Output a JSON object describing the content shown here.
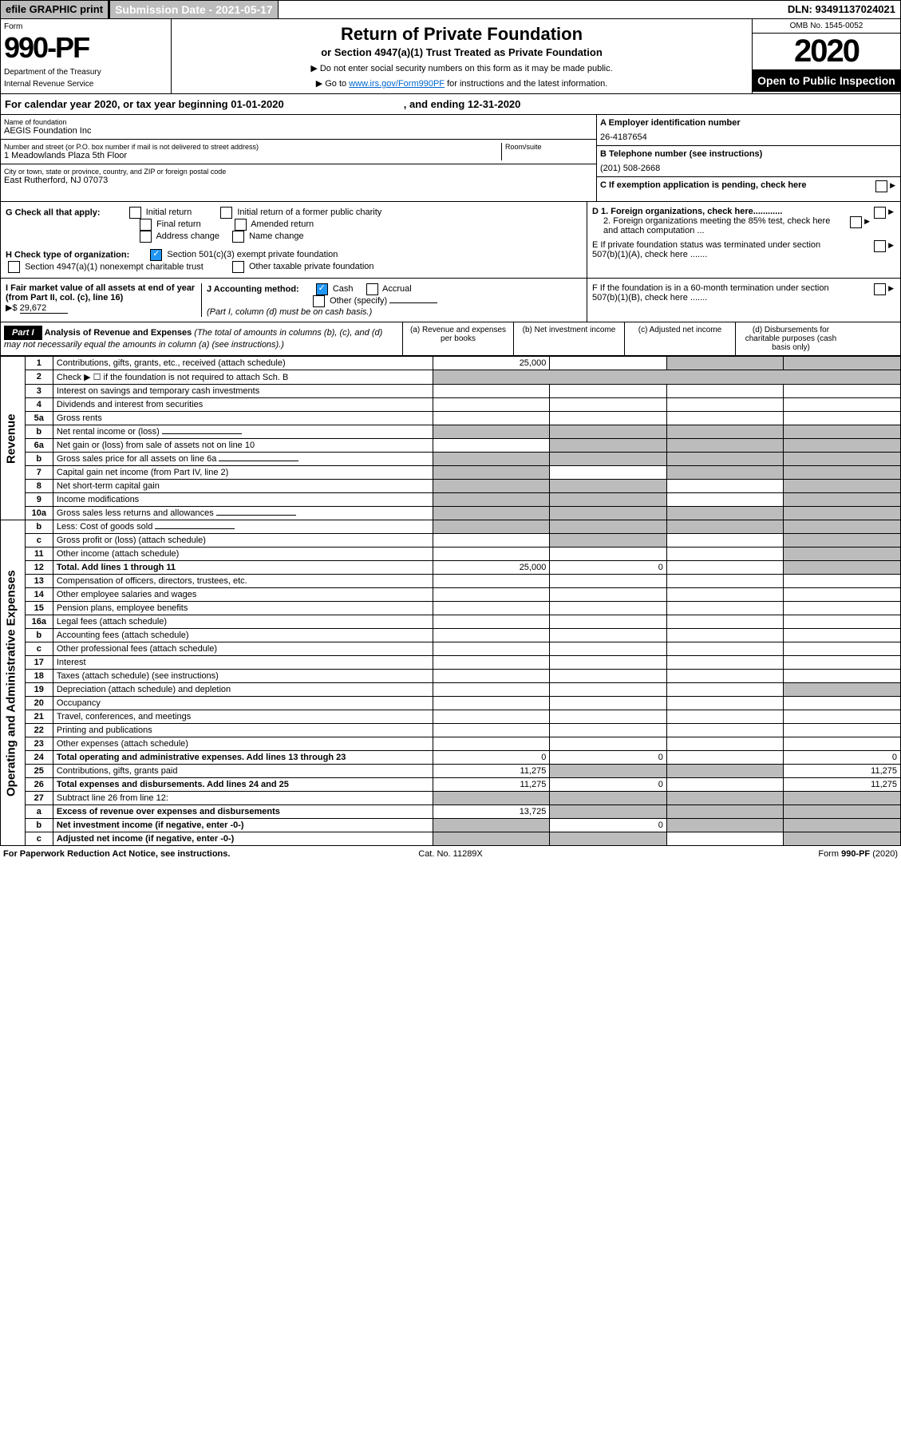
{
  "top": {
    "efile": "efile GRAPHIC print",
    "subdate_label": "Submission Date - ",
    "subdate": "2021-05-17",
    "dln_label": "DLN: ",
    "dln": "93491137024021"
  },
  "header": {
    "form_label": "Form",
    "form_num": "990-PF",
    "dept": "Department of the Treasury",
    "irs": "Internal Revenue Service",
    "title": "Return of Private Foundation",
    "subtitle": "or Section 4947(a)(1) Trust Treated as Private Foundation",
    "inst1": "▶ Do not enter social security numbers on this form as it may be made public.",
    "inst2_pre": "▶ Go to ",
    "inst2_link": "www.irs.gov/Form990PF",
    "inst2_post": " for instructions and the latest information.",
    "omb": "OMB No. 1545-0052",
    "year": "2020",
    "open": "Open to Public Inspection"
  },
  "calyear": {
    "text": "For calendar year 2020, or tax year beginning 01-01-2020",
    "ending": ", and ending 12-31-2020"
  },
  "info": {
    "name_label": "Name of foundation",
    "name": "AEGIS Foundation Inc",
    "addr_label": "Number and street (or P.O. box number if mail is not delivered to street address)",
    "room_label": "Room/suite",
    "addr": "1 Meadowlands Plaza 5th Floor",
    "city_label": "City or town, state or province, country, and ZIP or foreign postal code",
    "city": "East Rutherford, NJ  07073",
    "a_label": "A Employer identification number",
    "a_val": "26-4187654",
    "b_label": "B Telephone number (see instructions)",
    "b_val": "(201) 508-2668",
    "c_label": "C If exemption application is pending, check here"
  },
  "g": {
    "label": "G Check all that apply:",
    "initial": "Initial return",
    "initial_former": "Initial return of a former public charity",
    "final": "Final return",
    "amended": "Amended return",
    "addr_change": "Address change",
    "name_change": "Name change"
  },
  "h": {
    "label": "H Check type of organization:",
    "s501": "Section 501(c)(3) exempt private foundation",
    "s4947": "Section 4947(a)(1) nonexempt charitable trust",
    "other": "Other taxable private foundation"
  },
  "i": {
    "label": "I Fair market value of all assets at end of year (from Part II, col. (c), line 16)",
    "val": "29,672",
    "prefix": "▶$ "
  },
  "j": {
    "label": "J Accounting method:",
    "cash": "Cash",
    "accrual": "Accrual",
    "other": "Other (specify)",
    "note": "(Part I, column (d) must be on cash basis.)"
  },
  "d": {
    "d1": "D 1. Foreign organizations, check here............",
    "d2": "2. Foreign organizations meeting the 85% test, check here and attach computation ..."
  },
  "e": {
    "label": "E  If private foundation status was terminated under section 507(b)(1)(A), check here ......."
  },
  "f": {
    "label": "F  If the foundation is in a 60-month termination under section 507(b)(1)(B), check here ......."
  },
  "part1": {
    "hdr": "Part I",
    "title": "Analysis of Revenue and Expenses",
    "note": "(The total of amounts in columns (b), (c), and (d) may not necessarily equal the amounts in column (a) (see instructions).)",
    "col_a": "(a)   Revenue and expenses per books",
    "col_b": "(b)   Net investment income",
    "col_c": "(c)   Adjusted net income",
    "col_d": "(d)  Disbursements for charitable purposes (cash basis only)"
  },
  "side": {
    "revenue": "Revenue",
    "expenses": "Operating and Administrative Expenses"
  },
  "rows": [
    {
      "n": "1",
      "d": "Contributions, gifts, grants, etc., received (attach schedule)",
      "a": "25,000",
      "sc": true,
      "sd": true
    },
    {
      "n": "2",
      "d": "Check ▶ ☐ if the foundation is not required to attach Sch. B",
      "span": true
    },
    {
      "n": "3",
      "d": "Interest on savings and temporary cash investments"
    },
    {
      "n": "4",
      "d": "Dividends and interest from securities",
      "dots": true
    },
    {
      "n": "5a",
      "d": "Gross rents",
      "dots": true
    },
    {
      "n": "b",
      "d": "Net rental income or (loss)",
      "half": true,
      "sa": true,
      "sb": true,
      "sc": true,
      "sd": true
    },
    {
      "n": "6a",
      "d": "Net gain or (loss) from sale of assets not on line 10",
      "sb": true,
      "sc": true,
      "sd": true
    },
    {
      "n": "b",
      "d": "Gross sales price for all assets on line 6a",
      "half": true,
      "sa": true,
      "sb": true,
      "sc": true,
      "sd": true
    },
    {
      "n": "7",
      "d": "Capital gain net income (from Part IV, line 2)",
      "dots": true,
      "sa": true,
      "sc": true,
      "sd": true
    },
    {
      "n": "8",
      "d": "Net short-term capital gain",
      "dots": true,
      "sa": true,
      "sb": true,
      "sd": true
    },
    {
      "n": "9",
      "d": "Income modifications",
      "dots": true,
      "sa": true,
      "sb": true,
      "sd": true
    },
    {
      "n": "10a",
      "d": "Gross sales less returns and allowances",
      "half": true,
      "sa": true,
      "sb": true,
      "sc": true,
      "sd": true
    },
    {
      "n": "b",
      "d": "Less: Cost of goods sold",
      "dots": true,
      "half": true,
      "sa": true,
      "sb": true,
      "sc": true,
      "sd": true
    },
    {
      "n": "c",
      "d": "Gross profit or (loss) (attach schedule)",
      "dots": true,
      "sb": true,
      "sd": true
    },
    {
      "n": "11",
      "d": "Other income (attach schedule)",
      "dots": true,
      "sd": true
    },
    {
      "n": "12",
      "d": "Total. Add lines 1 through 11",
      "dots": true,
      "bold": true,
      "a": "25,000",
      "b": "0",
      "sd": true
    },
    {
      "n": "13",
      "d": "Compensation of officers, directors, trustees, etc."
    },
    {
      "n": "14",
      "d": "Other employee salaries and wages",
      "dots": true
    },
    {
      "n": "15",
      "d": "Pension plans, employee benefits",
      "dots": true
    },
    {
      "n": "16a",
      "d": "Legal fees (attach schedule)",
      "dots": true
    },
    {
      "n": "b",
      "d": "Accounting fees (attach schedule)",
      "dots": true
    },
    {
      "n": "c",
      "d": "Other professional fees (attach schedule)",
      "dots": true
    },
    {
      "n": "17",
      "d": "Interest",
      "dots": true
    },
    {
      "n": "18",
      "d": "Taxes (attach schedule) (see instructions)",
      "dots": true
    },
    {
      "n": "19",
      "d": "Depreciation (attach schedule) and depletion",
      "dots": true,
      "sd": true
    },
    {
      "n": "20",
      "d": "Occupancy",
      "dots": true
    },
    {
      "n": "21",
      "d": "Travel, conferences, and meetings",
      "dots": true
    },
    {
      "n": "22",
      "d": "Printing and publications",
      "dots": true
    },
    {
      "n": "23",
      "d": "Other expenses (attach schedule)",
      "dots": true
    },
    {
      "n": "24",
      "d": "Total operating and administrative expenses. Add lines 13 through 23",
      "dots": true,
      "bold": true,
      "a": "0",
      "b": "0",
      "dv": "0"
    },
    {
      "n": "25",
      "d": "Contributions, gifts, grants paid",
      "dots": true,
      "a": "11,275",
      "sb": true,
      "sc": true,
      "dv": "11,275"
    },
    {
      "n": "26",
      "d": "Total expenses and disbursements. Add lines 24 and 25",
      "bold": true,
      "a": "11,275",
      "b": "0",
      "dv": "11,275"
    },
    {
      "n": "27",
      "d": "Subtract line 26 from line 12:",
      "sa": true,
      "sb": true,
      "sc": true,
      "sd": true
    },
    {
      "n": "a",
      "d": "Excess of revenue over expenses and disbursements",
      "bold": true,
      "a": "13,725",
      "sb": true,
      "sc": true,
      "sd": true
    },
    {
      "n": "b",
      "d": "Net investment income (if negative, enter -0-)",
      "bold": true,
      "sa": true,
      "b": "0",
      "sc": true,
      "sd": true
    },
    {
      "n": "c",
      "d": "Adjusted net income (if negative, enter -0-)",
      "dots": true,
      "bold": true,
      "sa": true,
      "sb": true,
      "sd": true
    }
  ],
  "footer": {
    "left": "For Paperwork Reduction Act Notice, see instructions.",
    "mid": "Cat. No. 11289X",
    "right": "Form 990-PF (2020)"
  }
}
